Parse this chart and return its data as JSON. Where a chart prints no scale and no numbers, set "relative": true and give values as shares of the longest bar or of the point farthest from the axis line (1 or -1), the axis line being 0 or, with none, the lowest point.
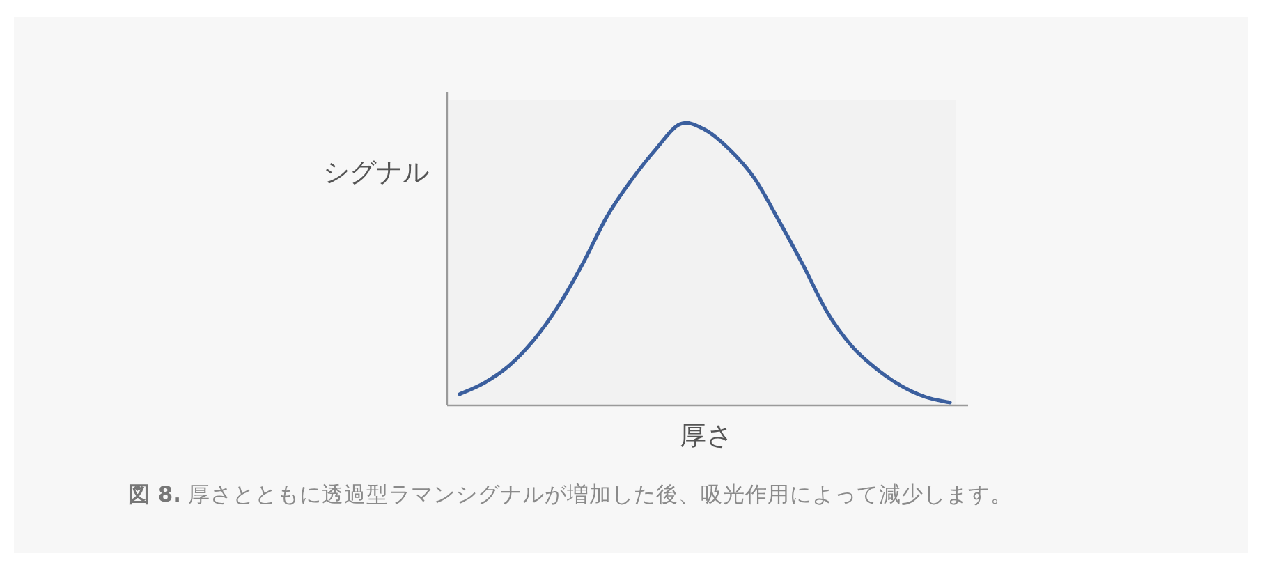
{
  "chart_data": {
    "type": "line",
    "relative": true,
    "xlabel": "厚さ",
    "ylabel": "シグナル",
    "categories": [
      null,
      null,
      null,
      null,
      null,
      null,
      null,
      null,
      null,
      null,
      null,
      null,
      null,
      null,
      null,
      null,
      null,
      null,
      null,
      null,
      null
    ],
    "series": [
      {
        "color": "#3b5f9e",
        "values": [
          0.04,
          0.08,
          0.14,
          0.23,
          0.35,
          0.5,
          0.67,
          0.8,
          0.91,
          1,
          0.98,
          0.91,
          0.81,
          0.66,
          0.5,
          0.33,
          0.21,
          0.13,
          0.07,
          0.03,
          0.01
        ]
      }
    ],
    "annotations": [
      "図 8. 厚さとともに透過型ラマンシグナルが増加した後、吸光作用によって減少します。"
    ],
    "marker": "none",
    "line_style": "solid"
  }
}
